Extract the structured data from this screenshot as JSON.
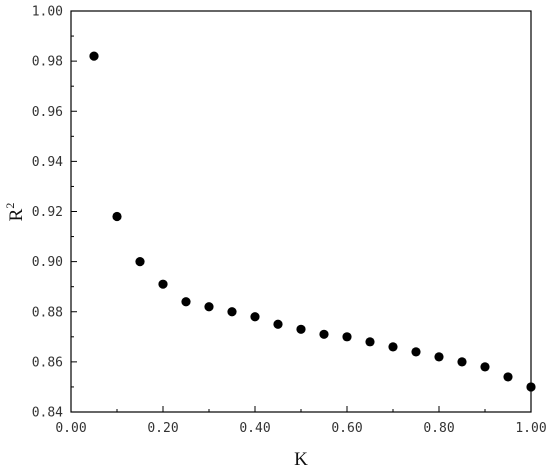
{
  "chart_data": {
    "type": "scatter",
    "xlabel": "K",
    "ylabel": "R",
    "ylabel_superscript": "2",
    "xlim": [
      0.0,
      1.0
    ],
    "ylim": [
      0.84,
      1.0
    ],
    "x_ticks": [
      "0.00",
      "0.20",
      "0.40",
      "0.60",
      "0.80",
      "1.00"
    ],
    "y_ticks": [
      "0.84",
      "0.86",
      "0.88",
      "0.90",
      "0.92",
      "0.94",
      "0.96",
      "0.98",
      "1.00"
    ],
    "grid": false,
    "marker_color": "#000000",
    "series": [
      {
        "x": [
          0.05,
          0.1,
          0.15,
          0.2,
          0.25,
          0.3,
          0.35,
          0.4,
          0.45,
          0.5,
          0.55,
          0.6,
          0.65,
          0.7,
          0.75,
          0.8,
          0.85,
          0.9,
          0.95,
          1.0
        ],
        "y": [
          0.982,
          0.918,
          0.9,
          0.891,
          0.884,
          0.882,
          0.88,
          0.878,
          0.875,
          0.873,
          0.871,
          0.87,
          0.868,
          0.866,
          0.864,
          0.862,
          0.86,
          0.858,
          0.854,
          0.85
        ]
      }
    ]
  }
}
